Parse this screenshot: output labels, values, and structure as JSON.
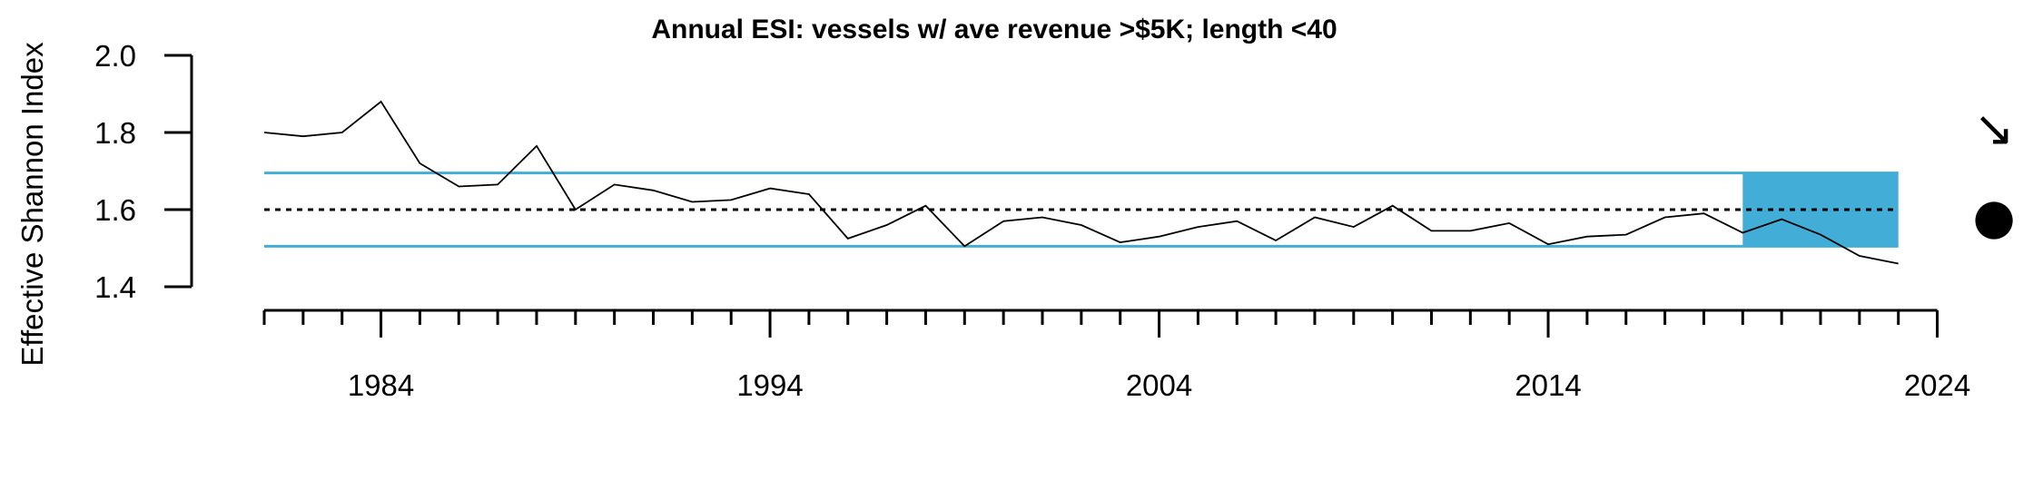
{
  "chart_data": {
    "type": "line",
    "title": "Annual ESI: vessels w/ ave revenue >$5K; length <40",
    "xlabel": "",
    "ylabel": "Effective Shannon Index",
    "xlim": [
      1981,
      2024
    ],
    "ylim": [
      1.4,
      2.0
    ],
    "x_ticks": [
      1984,
      1994,
      2004,
      2014,
      2024
    ],
    "y_ticks": [
      1.4,
      1.6,
      1.8,
      2.0
    ],
    "y_tick_labels": [
      "1.4",
      "1.6",
      "1.8",
      "2.0"
    ],
    "minor_x_ticks_every": 1,
    "grid": false,
    "series": [
      {
        "x": [
          1981,
          1982,
          1983,
          1984,
          1985,
          1986,
          1987,
          1988,
          1989,
          1990,
          1991,
          1992,
          1993,
          1994,
          1995,
          1996,
          1997,
          1998,
          1999,
          2000,
          2001,
          2002,
          2003,
          2004,
          2005,
          2006,
          2007,
          2008,
          2009,
          2010,
          2011,
          2012,
          2013,
          2014,
          2015,
          2016,
          2017,
          2018,
          2019,
          2020,
          2021,
          2022,
          2023
        ],
        "values": [
          1.8,
          1.79,
          1.8,
          1.88,
          1.72,
          1.66,
          1.665,
          1.765,
          1.6,
          1.665,
          1.65,
          1.62,
          1.625,
          1.655,
          1.64,
          1.525,
          1.56,
          1.61,
          1.505,
          1.57,
          1.58,
          1.56,
          1.515,
          1.53,
          1.555,
          1.57,
          1.52,
          1.58,
          1.555,
          1.61,
          1.545,
          1.545,
          1.565,
          1.51,
          1.53,
          1.535,
          1.58,
          1.59,
          1.54,
          1.575,
          1.535,
          1.48,
          1.46
        ],
        "color": "#000000"
      }
    ],
    "reference_lines": {
      "mean": 1.6,
      "mean_style": "dotted",
      "upper": 1.695,
      "lower": 1.505,
      "band_color": "#42aed8"
    },
    "highlight_period": {
      "x_start": 2019,
      "x_end": 2023,
      "color": "#42aed8"
    },
    "trend_indicators": {
      "trend_symbol": "↘",
      "mean_symbol": "●"
    }
  }
}
